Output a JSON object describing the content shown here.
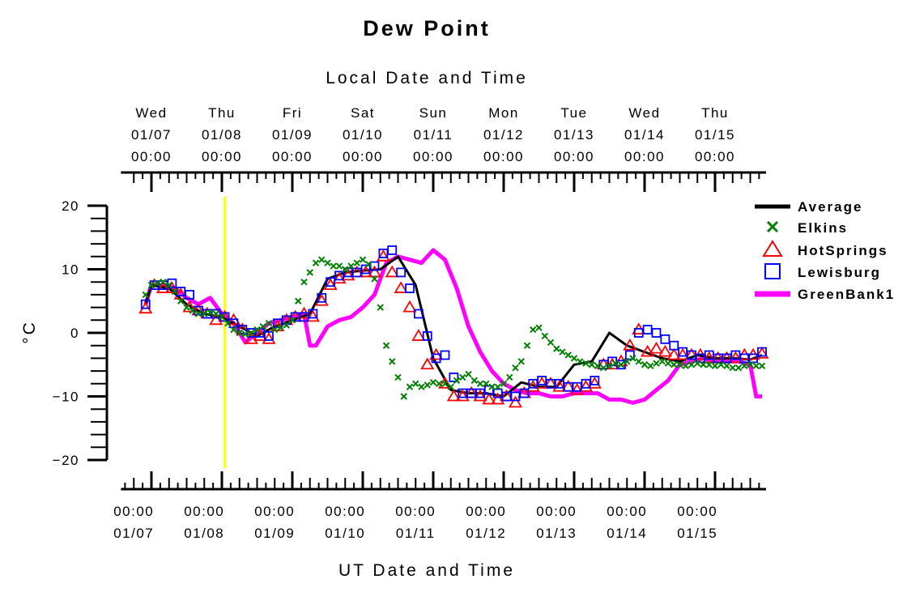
{
  "chart_data": {
    "type": "line",
    "title": "Dew Point",
    "top_axis_label": "Local Date and Time",
    "xlabel": "UT Date and Time",
    "ylabel": "°C",
    "ylim": [
      -20,
      20
    ],
    "y_ticks": [
      20,
      10,
      0,
      -10,
      -20
    ],
    "y_tick_labels": [
      "20",
      "10",
      "0",
      "−10",
      "−20"
    ],
    "x_range_hours_ut": [
      "01/06 22:00",
      "01/15 17:00"
    ],
    "ut_ticks": [
      {
        "time": "00:00",
        "date": "01/07"
      },
      {
        "time": "00:00",
        "date": "01/08"
      },
      {
        "time": "00:00",
        "date": "01/09"
      },
      {
        "time": "00:00",
        "date": "01/10"
      },
      {
        "time": "00:00",
        "date": "01/11"
      },
      {
        "time": "00:00",
        "date": "01/12"
      },
      {
        "time": "00:00",
        "date": "01/13"
      },
      {
        "time": "00:00",
        "date": "01/14"
      },
      {
        "time": "00:00",
        "date": "01/15"
      }
    ],
    "local_ticks": [
      {
        "day": "Wed",
        "date": "01/07",
        "time": "00:00"
      },
      {
        "day": "Thu",
        "date": "01/08",
        "time": "00:00"
      },
      {
        "day": "Fri",
        "date": "01/09",
        "time": "00:00"
      },
      {
        "day": "Sat",
        "date": "01/10",
        "time": "00:00"
      },
      {
        "day": "Sun",
        "date": "01/11",
        "time": "00:00"
      },
      {
        "day": "Mon",
        "date": "01/12",
        "time": "00:00"
      },
      {
        "day": "Tue",
        "date": "01/13",
        "time": "00:00"
      },
      {
        "day": "Wed",
        "date": "01/14",
        "time": "00:00"
      },
      {
        "day": "Thu",
        "date": "01/15",
        "time": "00:00"
      }
    ],
    "marker_line_ut": "01/08 07:00",
    "legend_position": "right",
    "x_unit": "hours since 01/07 00:00 UT",
    "series": [
      {
        "name": "Average",
        "color": "#000000",
        "style": "line",
        "x": [
          -2,
          0,
          6,
          12,
          18,
          24,
          30,
          36,
          42,
          48,
          54,
          60,
          66,
          72,
          78,
          84,
          90,
          96,
          102,
          108,
          114,
          120,
          126,
          132,
          138,
          144,
          150,
          156,
          162,
          168,
          174,
          180,
          186,
          192,
          198,
          204,
          208
        ],
        "y": [
          4.5,
          7.5,
          7.0,
          4.5,
          3.0,
          2.5,
          1.0,
          -0.5,
          1.0,
          2.0,
          3.0,
          8.5,
          9.5,
          9.8,
          10.0,
          12.0,
          7.5,
          -4.0,
          -9.0,
          -9.5,
          -9.5,
          -10.0,
          -7.8,
          -8.5,
          -8.5,
          -5.0,
          -4.5,
          0.0,
          -2.0,
          -3.0,
          -4.0,
          -4.5,
          -3.5,
          -4.0,
          -4.0,
          -4.2,
          -3.5
        ]
      },
      {
        "name": "Elkins",
        "color": "#008000",
        "style": "x-marker",
        "x": [
          -2,
          0,
          2,
          4,
          6,
          8,
          10,
          12,
          14,
          16,
          18,
          20,
          22,
          24,
          26,
          28,
          30,
          32,
          34,
          36,
          38,
          40,
          42,
          44,
          46,
          48,
          50,
          52,
          54,
          56,
          58,
          60,
          62,
          64,
          66,
          68,
          70,
          72,
          74,
          76,
          78,
          80,
          82,
          84,
          86,
          88,
          90,
          92,
          94,
          96,
          98,
          100,
          102,
          104,
          106,
          108,
          110,
          112,
          114,
          116,
          118,
          120,
          122,
          124,
          126,
          128,
          130,
          132,
          134,
          136,
          138,
          140,
          142,
          144,
          146,
          148,
          150,
          152,
          154,
          156,
          158,
          160,
          162,
          164,
          166,
          168,
          170,
          172,
          174,
          176,
          178,
          180,
          182,
          184,
          186,
          188,
          190,
          192,
          194,
          196,
          198,
          200,
          202,
          204,
          206,
          208
        ],
        "y": [
          6.0,
          7.5,
          7.8,
          8.0,
          7.5,
          6.5,
          5.0,
          4.0,
          3.5,
          3.0,
          3.0,
          3.2,
          3.0,
          2.5,
          1.5,
          0.5,
          0.0,
          -0.2,
          0.0,
          0.5,
          1.0,
          1.5,
          0.5,
          0.8,
          1.2,
          2.0,
          5.0,
          8.0,
          9.5,
          11.0,
          11.5,
          11.0,
          10.5,
          10.5,
          10.0,
          10.5,
          11.0,
          11.5,
          10.8,
          8.5,
          4.0,
          -2.0,
          -4.5,
          -7.0,
          -10.0,
          -8.5,
          -8.0,
          -8.5,
          -8.2,
          -7.8,
          -8.0,
          -8.0,
          -8.5,
          -7.5,
          -7.0,
          -6.5,
          -7.5,
          -8.0,
          -8.0,
          -8.5,
          -8.5,
          -8.0,
          -7.0,
          -5.5,
          -4.5,
          -2.0,
          0.5,
          0.8,
          -0.5,
          -1.5,
          -2.5,
          -3.0,
          -3.5,
          -4.0,
          -4.5,
          -4.8,
          -5.0,
          -5.2,
          -5.5,
          -5.2,
          -4.8,
          -5.0,
          -4.5,
          -4.0,
          -4.5,
          -5.0,
          -5.2,
          -4.8,
          -4.5,
          -4.8,
          -5.0,
          -5.0,
          -5.2,
          -5.0,
          -4.8,
          -5.0,
          -5.0,
          -5.2,
          -5.0,
          -5.2,
          -5.5,
          -5.5,
          -5.2,
          -5.0,
          -5.2,
          -5.2
        ],
        "count_note": ""
      },
      {
        "name": "HotSprings",
        "color": "#ff0000",
        "style": "triangle-marker",
        "x": [
          -2,
          1,
          4,
          7,
          10,
          13,
          16,
          19,
          22,
          25,
          28,
          31,
          34,
          37,
          40,
          43,
          46,
          49,
          52,
          55,
          58,
          61,
          64,
          67,
          70,
          73,
          76,
          79,
          82,
          85,
          88,
          91,
          94,
          97,
          100,
          103,
          106,
          109,
          112,
          115,
          118,
          121,
          124,
          127,
          130,
          133,
          136,
          139,
          142,
          145,
          148,
          151,
          154,
          157,
          160,
          163,
          166,
          169,
          172,
          175,
          178,
          181,
          184,
          187,
          190,
          193,
          196,
          199,
          202,
          205,
          208
        ],
        "y": [
          3.8,
          7.5,
          7.0,
          7.0,
          6.0,
          4.0,
          3.5,
          3.0,
          2.0,
          2.5,
          2.0,
          0.5,
          -1.0,
          -0.5,
          -1.0,
          1.0,
          2.0,
          2.5,
          3.0,
          2.5,
          5.0,
          7.5,
          8.5,
          9.0,
          9.5,
          9.5,
          9.5,
          12.0,
          9.5,
          7.0,
          4.0,
          -0.5,
          -5.0,
          -3.5,
          -8.0,
          -10.0,
          -10.0,
          -9.5,
          -10.0,
          -10.5,
          -10.5,
          -10.0,
          -11.0,
          -9.5,
          -8.5,
          -8.0,
          -8.0,
          -8.5,
          -8.5,
          -9.0,
          -8.5,
          -8.0,
          -5.0,
          -5.0,
          -4.5,
          -2.0,
          0.5,
          -3.0,
          -2.5,
          -3.0,
          -3.5,
          -3.5,
          -3.5,
          -3.5,
          -4.0,
          -4.0,
          -4.0,
          -4.0,
          -3.5,
          -3.5,
          -3.3
        ]
      },
      {
        "name": "Lewisburg",
        "color": "#0000ff",
        "style": "square-marker",
        "x": [
          -2,
          1,
          4,
          7,
          10,
          13,
          16,
          19,
          22,
          25,
          28,
          31,
          34,
          37,
          40,
          43,
          46,
          49,
          52,
          55,
          58,
          61,
          64,
          67,
          70,
          73,
          76,
          79,
          82,
          85,
          88,
          91,
          94,
          97,
          100,
          103,
          106,
          109,
          112,
          115,
          118,
          121,
          124,
          127,
          130,
          133,
          136,
          139,
          142,
          145,
          148,
          151,
          154,
          157,
          160,
          163,
          166,
          169,
          172,
          175,
          178,
          181,
          184,
          187,
          190,
          193,
          196,
          199,
          202,
          205,
          208
        ],
        "y": [
          4.5,
          7.5,
          7.5,
          7.8,
          6.5,
          6.0,
          3.5,
          3.0,
          3.0,
          2.5,
          1.5,
          0.5,
          0.0,
          0.0,
          -0.5,
          1.5,
          2.0,
          2.5,
          2.5,
          3.0,
          5.5,
          8.0,
          9.0,
          9.5,
          9.5,
          10.0,
          10.5,
          12.5,
          13.0,
          9.5,
          7.0,
          3.0,
          -0.5,
          -4.0,
          -3.5,
          -7.0,
          -9.5,
          -9.5,
          -9.5,
          -9.0,
          -9.5,
          -10.0,
          -10.0,
          -9.5,
          -8.0,
          -7.5,
          -8.0,
          -8.0,
          -8.5,
          -8.5,
          -8.0,
          -7.5,
          -5.0,
          -4.5,
          -5.0,
          -3.5,
          0.0,
          0.5,
          0.0,
          -1.0,
          -2.0,
          -3.0,
          -3.5,
          -4.0,
          -3.5,
          -4.0,
          -4.0,
          -3.5,
          -4.0,
          -4.0,
          -3.0
        ]
      },
      {
        "name": "GreenBank1",
        "color": "#ff00ff",
        "style": "thick-line",
        "x": [
          -2,
          0,
          4,
          8,
          12,
          16,
          20,
          24,
          28,
          32,
          36,
          40,
          44,
          48,
          52,
          54,
          56,
          58,
          60,
          64,
          68,
          72,
          76,
          80,
          84,
          88,
          92,
          96,
          100,
          104,
          108,
          112,
          116,
          120,
          124,
          128,
          132,
          136,
          140,
          144,
          148,
          152,
          156,
          160,
          164,
          168,
          172,
          176,
          180,
          184,
          188,
          192,
          196,
          200,
          204,
          206,
          208
        ],
        "y": [
          4.5,
          7.5,
          7.5,
          7.0,
          5.5,
          4.5,
          5.5,
          3.0,
          1.5,
          -1.5,
          0.0,
          1.5,
          2.0,
          2.5,
          3.0,
          -2.0,
          -2.0,
          -0.5,
          1.0,
          2.0,
          2.5,
          4.0,
          6.0,
          11.0,
          12.0,
          11.5,
          11.0,
          13.0,
          11.5,
          7.0,
          1.0,
          -3.0,
          -6.0,
          -8.0,
          -9.0,
          -9.5,
          -9.5,
          -10.0,
          -10.0,
          -9.5,
          -9.5,
          -9.5,
          -10.5,
          -10.5,
          -11.0,
          -10.5,
          -9.0,
          -7.5,
          -5.0,
          -4.5,
          -4.0,
          -4.5,
          -4.5,
          -4.5,
          -5.0,
          -10.0,
          -10.0
        ]
      }
    ]
  }
}
